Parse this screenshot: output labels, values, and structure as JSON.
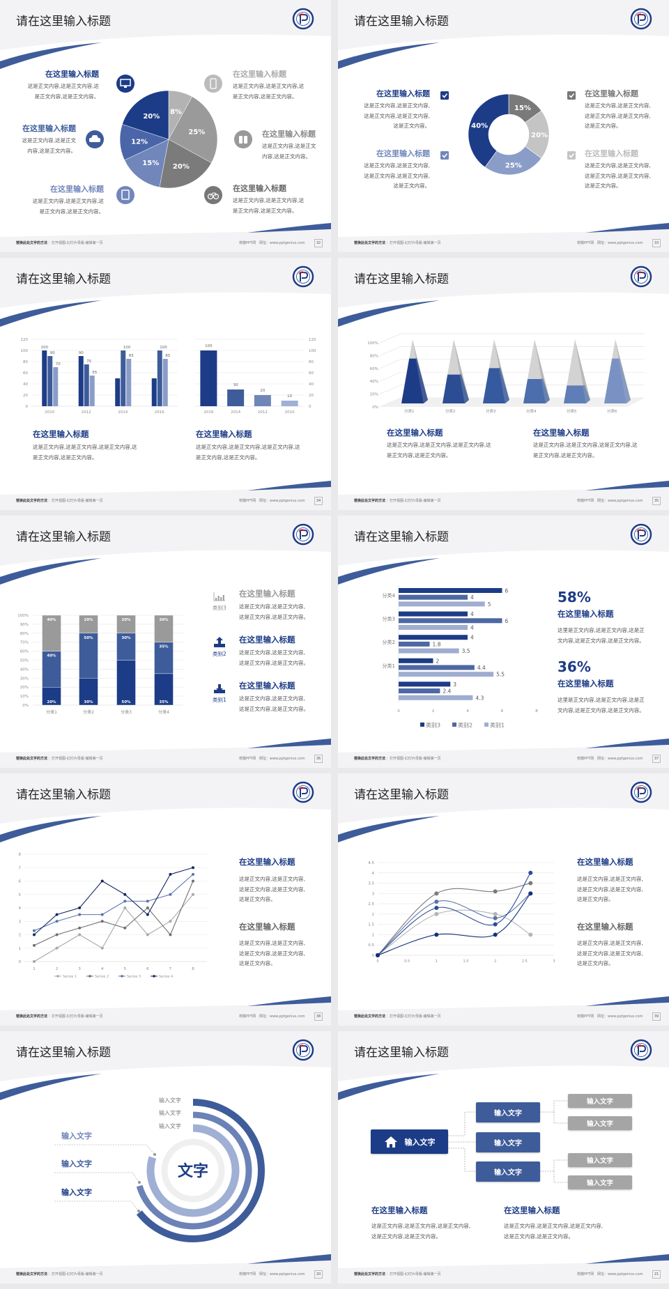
{
  "footer": {
    "left_bold": "替换此处文字的方法",
    "left": "：打开视图-幻灯片母版-编辑第一页",
    "brand": "校徽PPT网",
    "site": "网址：www.pptgenius.com"
  },
  "colors": {
    "navy": "#1d3c87",
    "mid": "#3e5c9a",
    "light": "#7187bb",
    "lighter": "#a0b0d4",
    "gray": "#9a9a9a",
    "light_gray": "#c4c4c4",
    "dark_gray": "#7a7a7a",
    "background": "#f3f3f5"
  },
  "slides": [
    {
      "title": "请在这里输入标题",
      "page": "32",
      "items": [
        {
          "title": "在这里输入标题",
          "body": [
            "这是正文内容,这是正文内容,这",
            "是正文内容,这是正文内容。"
          ],
          "icon": "monitor-icon"
        },
        {
          "title": "在这里输入标题",
          "body": [
            "这是正文内容,这是正文",
            "内容,这是正文内容。"
          ],
          "icon": "car-icon"
        },
        {
          "title": "在这里输入标题",
          "body": [
            "这是正文内容,这是正文内容,这",
            "是正文内容,这是正文内容。"
          ],
          "icon": "book-icon"
        },
        {
          "title": "在这里输入标题",
          "body": [
            "这是正文内容,这是正文内容,这",
            "是正文内容,这是正文内容。"
          ],
          "icon": "phone-icon"
        },
        {
          "title": "在这里输入标题",
          "body": [
            "这是正文内容,这是正文",
            "内容,这是正文内容。"
          ],
          "icon": "binoculars-icon"
        },
        {
          "title": "在这里输入标题",
          "body": [
            "这是正文内容,这是正文内容,这",
            "是正文内容,这是正文内容。"
          ],
          "icon": "bicycle-icon"
        }
      ]
    },
    {
      "title": "请在这里输入标题",
      "page": "33",
      "items": [
        {
          "title": "在这里输入标题",
          "body": [
            "这是正文内容,这是正文内容,",
            "这是正文内容,这是正文内容,",
            "这是正文内容。"
          ],
          "icon": "checkbox-icon"
        },
        {
          "title": "在这里输入标题",
          "body": [
            "这是正文内容,这是正文内容,",
            "这是正文内容,这是正文内容,",
            "这是正文内容。"
          ],
          "icon": "checkbox-icon"
        },
        {
          "title": "在这里输入标题",
          "body": [
            "这是正文内容,这是正文内容,",
            "这是正文内容,这是正文内容,",
            "这是正文内容。"
          ],
          "icon": "checkbox-icon"
        },
        {
          "title": "在这里输入标题",
          "body": [
            "这是正文内容,这是正文内容,",
            "这是正文内容,这是正文内容,",
            "这是正文内容。"
          ],
          "icon": "checkbox-icon"
        }
      ]
    },
    {
      "title": "请在这里输入标题",
      "page": "34",
      "items": [
        {
          "title": "在这里输入标题",
          "body": [
            "这是正文内容,这是正文内容,这是正文内容,这",
            "是正文内容,这是正文内容。"
          ]
        },
        {
          "title": "在这里输入标题",
          "body": [
            "这是正文内容,这是正文内容,这是正文内容,这",
            "是正文内容,这是正文内容。"
          ]
        }
      ]
    },
    {
      "title": "请在这里输入标题",
      "page": "35",
      "items": [
        {
          "title": "在这里输入标题",
          "body": [
            "这是正文内容,这是正文内容,这是正文内容,这",
            "是正文内容,这是正文内容。"
          ]
        },
        {
          "title": "在这里输入标题",
          "body": [
            "这是正文内容,这是正文内容,这是正文内容,这",
            "是正文内容,这是正文内容。"
          ]
        }
      ]
    },
    {
      "title": "请在这里输入标题",
      "page": "36",
      "items": [
        {
          "label": "类别3",
          "title": "在这里输入标题",
          "body": [
            "这是正文内容,这是正文内容,",
            "这是正文内容,这是正文内容。"
          ],
          "icon": "bar-chart-icon"
        },
        {
          "label": "类别2",
          "title": "在这里输入标题",
          "body": [
            "这是正文内容,这是正文内容,",
            "这是正文内容,这是正文内容。"
          ],
          "icon": "upload-icon"
        },
        {
          "label": "类别1",
          "title": "在这里输入标题",
          "body": [
            "这是正文内容,这是正文内容,",
            "这是正文内容,这是正文内容。"
          ],
          "icon": "download-icon"
        }
      ]
    },
    {
      "title": "请在这里输入标题",
      "page": "37",
      "items": [
        {
          "stat": "58%",
          "title": "在这里输入标题",
          "body": [
            "这里是正文内容,这是正文内容,这是正",
            "文内容,这是正文内容,这是正文内容。"
          ]
        },
        {
          "stat": "36%",
          "title": "在这里输入标题",
          "body": [
            "这里是正文内容,这是正文内容,这是正",
            "文内容,这是正文内容,这是正文内容。"
          ]
        }
      ]
    },
    {
      "title": "请在这里输入标题",
      "page": "38",
      "items": [
        {
          "title": "在这里输入标题",
          "body": [
            "这是正文内容,这是正文内容,",
            "这是正文内容,这是正文内容,",
            "这是正文内容。"
          ]
        },
        {
          "title": "在这里输入标题",
          "body": [
            "这是正文内容,这是正文内容,",
            "这是正文内容,这是正文内容,",
            "这是正文内容。"
          ]
        }
      ]
    },
    {
      "title": "请在这里输入标题",
      "page": "39",
      "items": [
        {
          "title": "在这里输入标题",
          "body": [
            "这是正文内容,这是正文内容,",
            "这是正文内容,这是正文内容,",
            "这是正文内容。"
          ]
        },
        {
          "title": "在这里输入标题",
          "body": [
            "这是正文内容,这是正文内容,",
            "这是正文内容,这是正文内容,",
            "这是正文内容。"
          ]
        }
      ]
    },
    {
      "title": "请在这里输入标题",
      "page": "20",
      "center_label": "文字",
      "ring_labels": [
        "输入文字",
        "输入文字",
        "输入文字"
      ],
      "side_labels": [
        "输入文字",
        "输入文字",
        "输入文字"
      ]
    },
    {
      "title": "请在这里输入标题",
      "page": "21",
      "root": {
        "label": "输入文字",
        "icon": "home-icon"
      },
      "level1": [
        "输入文字",
        "输入文字",
        "输入文字"
      ],
      "level2": [
        "输入文字",
        "输入文字",
        "输入文字",
        "输入文字"
      ],
      "items": [
        {
          "title": "在这里输入标题",
          "body": [
            "这是正文内容,这是正文内容,这是正文内容,",
            "这是正文内容,这是正文内容。"
          ]
        },
        {
          "title": "在这里输入标题",
          "body": [
            "这是正文内容,这是正文内容,这是正文内容,",
            "这是正文内容,这是正文内容。"
          ]
        }
      ]
    }
  ],
  "chart_data": [
    {
      "type": "pie",
      "values": [
        8,
        25,
        20,
        15,
        12,
        20
      ],
      "labels": [
        "8%",
        "25%",
        "20%",
        "15%",
        "12%",
        "20%"
      ],
      "colors": [
        "#b3b3b3",
        "#9a9a9a",
        "#7b7b7b",
        "#7187bb",
        "#4a66a8",
        "#1d3c87"
      ]
    },
    {
      "type": "pie",
      "donut": true,
      "values": [
        15,
        20,
        25,
        40
      ],
      "labels": [
        "15%",
        "20%",
        "25%",
        "40%"
      ],
      "colors": [
        "#7a7a7a",
        "#c4c4c4",
        "#8a9dc8",
        "#1d3c87"
      ]
    },
    {
      "type": "bar",
      "categories": [
        "2010",
        "2012",
        "2014",
        "2016"
      ],
      "ylim": [
        0,
        120
      ],
      "yticks": [
        "0",
        "20",
        "40",
        "60",
        "80",
        "100",
        "120"
      ],
      "series": [
        {
          "values": [
            100,
            90,
            50,
            50
          ],
          "labels": [
            "100",
            "90",
            "",
            ""
          ],
          "color": "#1d3c87"
        },
        {
          "values": [
            90,
            75,
            100,
            100
          ],
          "labels": [
            "90",
            "75",
            "100",
            "100"
          ],
          "color": "#3e5c9a"
        },
        {
          "values": [
            70,
            55,
            85,
            85
          ],
          "labels": [
            "70",
            "55",
            "85",
            "85"
          ],
          "color": "#8a9dc8"
        }
      ],
      "grid": true
    },
    {
      "type": "bar",
      "categories": [
        "2016",
        "2014",
        "2012",
        "2010"
      ],
      "values": [
        100,
        30,
        20,
        10
      ],
      "labels": [
        "100",
        "30",
        "20",
        "10"
      ],
      "colors": [
        "#1d3c87",
        "#3e5c9a",
        "#6f86b8",
        "#9fb0d4"
      ],
      "ylim": [
        0,
        120
      ],
      "yticks": [
        "0",
        "20",
        "40",
        "60",
        "80",
        "100",
        "120"
      ],
      "axis": "right",
      "grid": true
    },
    {
      "type": "bar",
      "style": "3d-pyramid",
      "categories": [
        "分类1",
        "分类2",
        "分类3",
        "分类4",
        "分类5",
        "分类6"
      ],
      "values": [
        70,
        45,
        55,
        38,
        28,
        70
      ],
      "ylim": [
        0,
        100
      ],
      "yticks": [
        "0%",
        "20%",
        "40%",
        "60%",
        "80%",
        "100%"
      ],
      "colors": [
        "#1d3c87",
        "#2c4d94",
        "#365a9f",
        "#4d6eac",
        "#5f7db6",
        "#7a92c3"
      ],
      "grid": true
    },
    {
      "type": "bar",
      "stacked": true,
      "categories": [
        "分类1",
        "分类2",
        "分类3",
        "分类4"
      ],
      "ylim": [
        0,
        100
      ],
      "yticks": [
        "0%",
        "10%",
        "20%",
        "30%",
        "40%",
        "50%",
        "60%",
        "70%",
        "80%",
        "90%",
        "100%"
      ],
      "series": [
        {
          "values": [
            20,
            30,
            50,
            35
          ],
          "labels": [
            "20%",
            "30%",
            "50%",
            "35%"
          ],
          "color": "#1d3c87"
        },
        {
          "values": [
            40,
            50,
            30,
            35
          ],
          "labels": [
            "40%",
            "50%",
            "30%",
            "35%"
          ],
          "color": "#3e5c9a"
        },
        {
          "values": [
            40,
            20,
            20,
            30
          ],
          "labels": [
            "40%",
            "20%",
            "20%",
            "30%"
          ],
          "color": "#9a9a9a"
        }
      ],
      "grid": true
    },
    {
      "type": "bar",
      "orientation": "horizontal",
      "categories": [
        "分类4",
        "分类3",
        "分类2",
        "分类1",
        ""
      ],
      "xlim": [
        0,
        8
      ],
      "xticks": [
        "0",
        "2",
        "4",
        "6",
        "8"
      ],
      "series": [
        {
          "name": "类别3",
          "values": [
            6,
            4,
            4,
            2,
            3
          ],
          "labels": [
            "6",
            "4",
            "4",
            "2",
            "3"
          ],
          "color": "#1d3c87"
        },
        {
          "name": "类别2",
          "values": [
            4,
            6,
            1.8,
            4.4,
            2.4
          ],
          "labels": [
            "4",
            "6",
            "1.8",
            "4.4",
            "2.4"
          ],
          "color": "#4e68a3"
        },
        {
          "name": "类别1",
          "values": [
            5,
            4,
            3.5,
            5.5,
            4.3
          ],
          "labels": [
            "5",
            "4",
            "3.5",
            "5.5",
            "4.3"
          ],
          "color": "#9fadd0"
        }
      ],
      "legend": "bottom"
    },
    {
      "type": "line",
      "x": [
        1,
        2,
        3,
        4,
        5,
        6,
        7,
        8
      ],
      "ylim": [
        0,
        8
      ],
      "xticks": [
        "1",
        "2",
        "3",
        "4",
        "5",
        "6",
        "7",
        "8"
      ],
      "yticks": [
        "0",
        "1",
        "2",
        "3",
        "4",
        "5",
        "6",
        "7",
        "8"
      ],
      "series": [
        {
          "name": "Series 1",
          "values": [
            0,
            1,
            2,
            1,
            4,
            2,
            3,
            5
          ],
          "color": "#a8a8a8"
        },
        {
          "name": "Series 2",
          "values": [
            1.2,
            2,
            2.5,
            3,
            2.5,
            4,
            2,
            6
          ],
          "color": "#6f6f6f"
        },
        {
          "name": "Series 3",
          "values": [
            2.3,
            3,
            3.5,
            3.5,
            4.5,
            4.5,
            5,
            6.5
          ],
          "color": "#5a73ab"
        },
        {
          "name": "Series 4",
          "values": [
            2,
            3.5,
            4,
            6,
            5,
            3.5,
            6.5,
            7
          ],
          "color": "#13275f"
        }
      ],
      "legend": "bottom",
      "grid": true
    },
    {
      "type": "scatter",
      "smooth": true,
      "x": [
        0,
        1,
        2,
        2.6
      ],
      "xlim": [
        0,
        3
      ],
      "ylim": [
        0,
        4.5
      ],
      "xticks": [
        "0",
        "0.5",
        "1",
        "1.5",
        "2",
        "2.5",
        "3"
      ],
      "yticks": [
        "0",
        "0.5",
        "1",
        "1.5",
        "2",
        "2.5",
        "3",
        "3.5",
        "4",
        "4.5"
      ],
      "series": [
        {
          "values": [
            0,
            3,
            3.1,
            3.5
          ],
          "color": "#7a7a7a"
        },
        {
          "values": [
            0,
            2,
            2,
            1
          ],
          "color": "#b5b5b5"
        },
        {
          "values": [
            0,
            2.6,
            1.8,
            3
          ],
          "color": "#5a73ab"
        },
        {
          "values": [
            0,
            2.3,
            1.5,
            4
          ],
          "color": "#2c4d94"
        },
        {
          "values": [
            0,
            1,
            1,
            3
          ],
          "color": "#13307a"
        }
      ],
      "grid": true
    }
  ]
}
